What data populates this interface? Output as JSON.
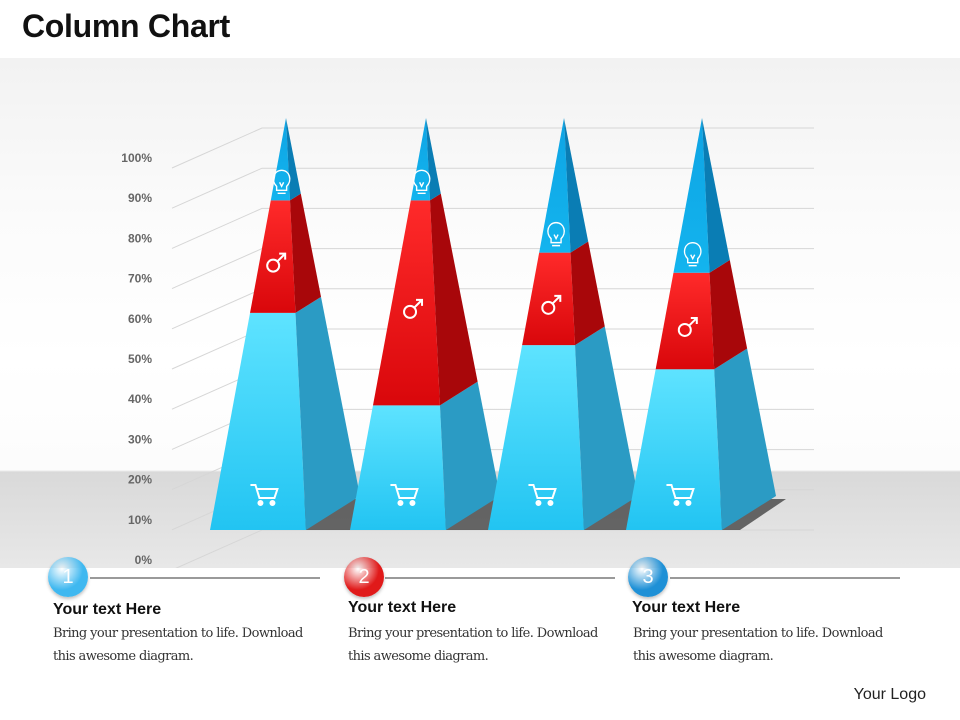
{
  "title": "Column Chart",
  "chart_data": {
    "type": "bar",
    "stacked": true,
    "categories": [
      "",
      "",
      "",
      ""
    ],
    "series": [
      {
        "icon": "shopping-cart-icon",
        "color": "#33ccff",
        "values": [
          54,
          31,
          46,
          40
        ]
      },
      {
        "icon": "male-symbol-icon",
        "color": "#e8171b",
        "values": [
          28,
          51,
          23,
          24
        ]
      },
      {
        "icon": "lightbulb-icon",
        "color": "#1aaee6",
        "values": [
          18,
          18,
          31,
          36
        ]
      }
    ],
    "yticks": [
      "0%",
      "10%",
      "20%",
      "30%",
      "40%",
      "50%",
      "60%",
      "70%",
      "80%",
      "90%",
      "100%"
    ],
    "ylim": [
      0,
      100
    ],
    "grid": true,
    "legend": "none"
  },
  "steps": [
    {
      "number": "1",
      "color": "#3fb8f0",
      "heading": "Your text Here",
      "text": "Bring your presentation to life. Download this awesome diagram."
    },
    {
      "number": "2",
      "color": "#e01a1a",
      "heading": "Your text Here",
      "text": "Bring your presentation to life. Download this awesome diagram."
    },
    {
      "number": "3",
      "color": "#1e90d6",
      "heading": "Your text Here",
      "text": "Bring your presentation to life. Download this awesome diagram."
    }
  ],
  "logo": "Your Logo"
}
